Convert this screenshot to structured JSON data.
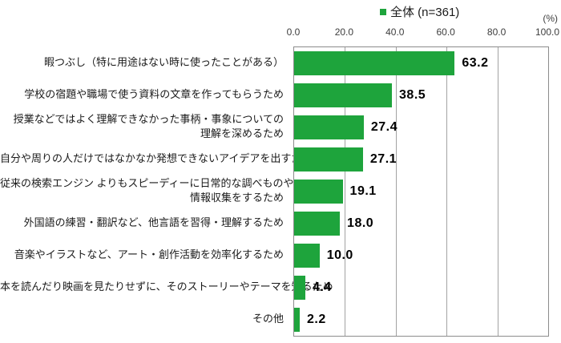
{
  "chart_data": {
    "type": "bar",
    "orientation": "horizontal",
    "title": "",
    "legend": {
      "label": "全体 (n=361)",
      "swatch_color": "#1ea43c",
      "position": "top-center"
    },
    "unit_label": "(%)",
    "x_axis": {
      "min": 0,
      "max": 100,
      "tick_values": [
        0,
        20,
        40,
        60,
        80,
        100
      ],
      "tick_labels": [
        "0.0",
        "20.0",
        "40.0",
        "60.0",
        "80.0",
        "100.0"
      ],
      "position": "top",
      "grid": true
    },
    "categories": [
      "暇つぶし（特に用途はない時に使ったことがある）",
      "学校の宿題や職場で使う資料の文章を作ってもらうため",
      "授業などではよく理解できなかった事柄・事象についての\n理解を深めるため",
      "自分や周りの人だけではなかなか発想できないアイデアを出すため",
      "従来の検索エンジン よりもスピーディーに日常的な調べものや\n情報収集をするため",
      "外国語の練習・翻訳など、他言語を習得・理解するため",
      "音楽やイラストなど、アート・創作活動を効率化するため",
      "本を読んだり映画を見たりせずに、そのストーリーやテーマを知るため",
      "その他"
    ],
    "values": [
      63.2,
      38.5,
      27.4,
      27.1,
      19.1,
      18.0,
      10.0,
      4.4,
      2.2
    ],
    "value_labels": [
      "63.2",
      "38.5",
      "27.4",
      "27.1",
      "19.1",
      "18.0",
      "10.0",
      "4.4",
      "2.2"
    ],
    "bar_color": "#1ea43c",
    "gridline_color": "#a3a3a3",
    "border_color": "#8c8c8c"
  }
}
